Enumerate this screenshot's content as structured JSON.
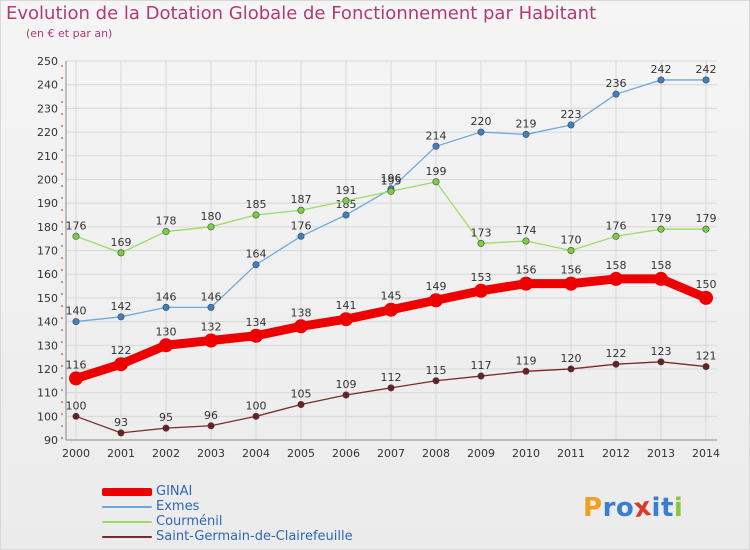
{
  "title": "Evolution de la Dotation Globale de Fonctionnement par Habitant",
  "subtitle": "(en € et par an)",
  "logo": {
    "text": "Proxiti",
    "letter_colors": [
      "#f0a01e",
      "#3a7fcb",
      "#3a7fcb",
      "#d93a2b",
      "#3a7fcb",
      "#3a7fcb",
      "#8cc63f"
    ]
  },
  "chart_data": {
    "type": "line",
    "title": "Evolution de la Dotation Globale de Fonctionnement par Habitant",
    "subtitle": "(en € et par an)",
    "xlabel": "",
    "ylabel": "",
    "x": [
      "2000",
      "2001",
      "2002",
      "2003",
      "2004",
      "2005",
      "2006",
      "2007",
      "2008",
      "2009",
      "2010",
      "2011",
      "2012",
      "2013",
      "2014"
    ],
    "ylim": [
      90,
      250
    ],
    "yticks": [
      "90",
      "100",
      "110",
      "120",
      "130",
      "140",
      "150",
      "160",
      "170",
      "180",
      "190",
      "200",
      "210",
      "220",
      "230",
      "240",
      "250"
    ],
    "grid": true,
    "legend": "bottom-left",
    "series": [
      {
        "name": "GINAI",
        "color": "#ee0000",
        "emphasis": true,
        "values": [
          116,
          122,
          130,
          132,
          134,
          138,
          141,
          145,
          149,
          153,
          156,
          156,
          158,
          158,
          150
        ]
      },
      {
        "name": "Exmes",
        "color": "#6fa8dc",
        "marker": "#3d7fc1",
        "values": [
          140,
          142,
          146,
          146,
          164,
          176,
          185,
          196,
          214,
          220,
          219,
          223,
          236,
          242,
          242
        ]
      },
      {
        "name": "Courménil",
        "color": "#99dd66",
        "marker": "#7ccf3e",
        "values": [
          176,
          169,
          178,
          180,
          185,
          187,
          191,
          195,
          199,
          173,
          174,
          170,
          176,
          179,
          179
        ]
      },
      {
        "name": "Saint-Germain-de-Clairefeuille",
        "color": "#7a2a2a",
        "marker": "#6b1f1f",
        "values": [
          100,
          93,
          95,
          96,
          100,
          105,
          109,
          112,
          115,
          117,
          119,
          120,
          122,
          123,
          121
        ]
      }
    ]
  }
}
